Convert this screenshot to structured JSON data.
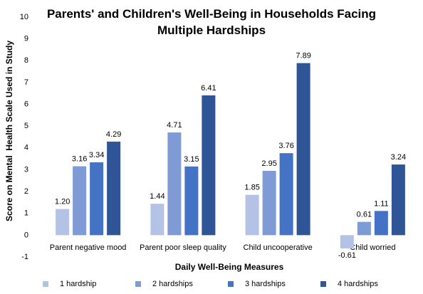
{
  "chart_data": {
    "type": "bar",
    "title": "Parents' and Children's Well-Being in Households Facing Multiple Hardships",
    "x_label": "Daily Well-Being Measures",
    "y_label": "Score on Mental  Health Scale Used in Study",
    "categories": [
      "Parent negative mood",
      "Parent poor sleep quality",
      "Child uncooperative",
      "Child worried"
    ],
    "series": [
      {
        "name": "1 hardship",
        "color": "#b4c2e6",
        "values": [
          1.2,
          1.44,
          1.85,
          -0.61
        ],
        "value_labels": [
          "1.20",
          "1.44",
          "1.85",
          "-0.61"
        ]
      },
      {
        "name": "2 hardships",
        "color": "#7f9bd5",
        "values": [
          3.16,
          4.71,
          2.95,
          0.61
        ]
      },
      {
        "name": "3 hardships",
        "color": "#4472c4",
        "values": [
          3.34,
          3.15,
          3.76,
          1.11
        ]
      },
      {
        "name": "4 hardships",
        "color": "#2f5597",
        "values": [
          4.29,
          6.41,
          7.89,
          3.24
        ]
      }
    ],
    "ylim": [
      -1,
      10
    ],
    "yticks": [
      -1,
      0,
      1,
      2,
      3,
      4,
      5,
      6,
      7,
      8,
      9,
      10
    ],
    "grid": false,
    "legend": "bottom"
  }
}
